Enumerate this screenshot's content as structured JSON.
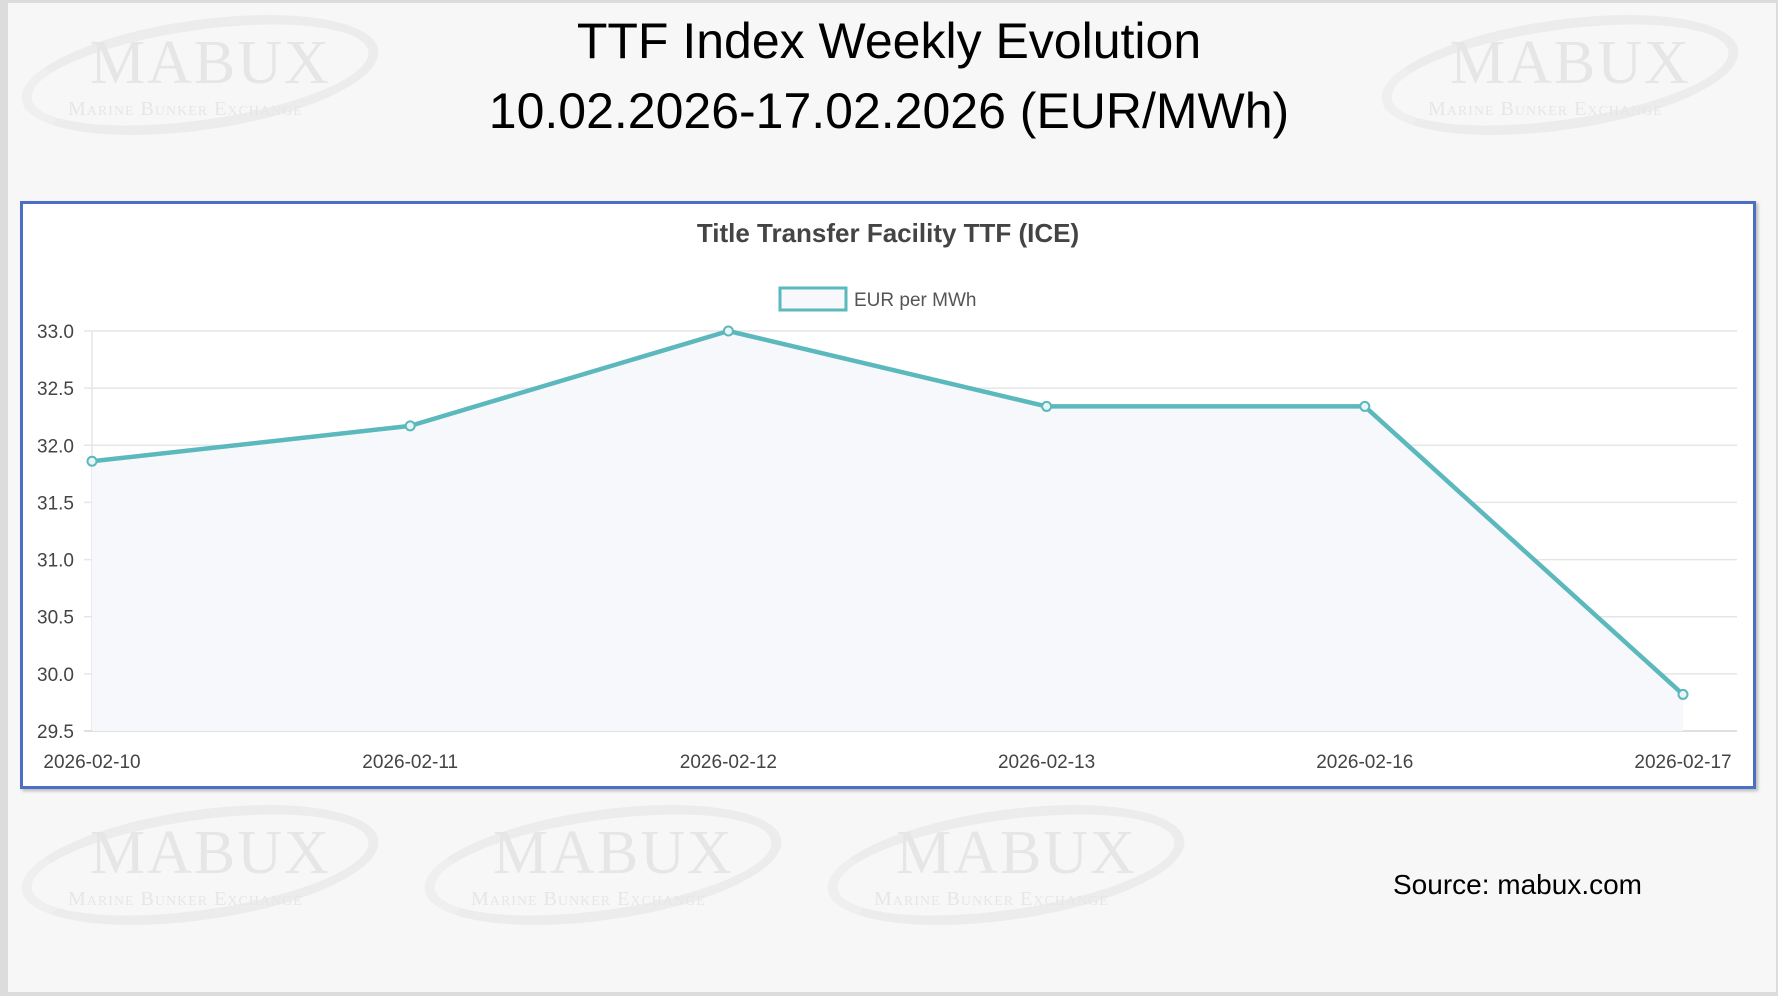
{
  "header": {
    "title_line1": "TTF Index Weekly Evolution",
    "title_line2": "10.02.2026-17.02.2026 (EUR/MWh)"
  },
  "watermark": {
    "brand": "MABUX",
    "tagline": "Marine Bunker Exchange"
  },
  "source": "Source: mabux.com",
  "colors": {
    "line": "#5bb8bd",
    "fill": "#f6f8fb",
    "frame": "#4a6fc4",
    "grid": "#e6e6e6"
  },
  "chart_data": {
    "type": "line",
    "title": "Title Transfer Facility TTF (ICE)",
    "categories": [
      "2026-02-10",
      "2026-02-11",
      "2026-02-12",
      "2026-02-13",
      "2026-02-16",
      "2026-02-17"
    ],
    "series": [
      {
        "name": "EUR per MWh",
        "values": [
          31.86,
          32.17,
          33.0,
          32.34,
          32.34,
          29.82
        ]
      }
    ],
    "ylim": [
      29.5,
      33.0
    ],
    "yticks": [
      "33.0",
      "32.5",
      "32.0",
      "31.5",
      "31.0",
      "30.5",
      "30.0",
      "29.5"
    ],
    "grid": true,
    "legend": "top-center",
    "fill_area": true
  }
}
